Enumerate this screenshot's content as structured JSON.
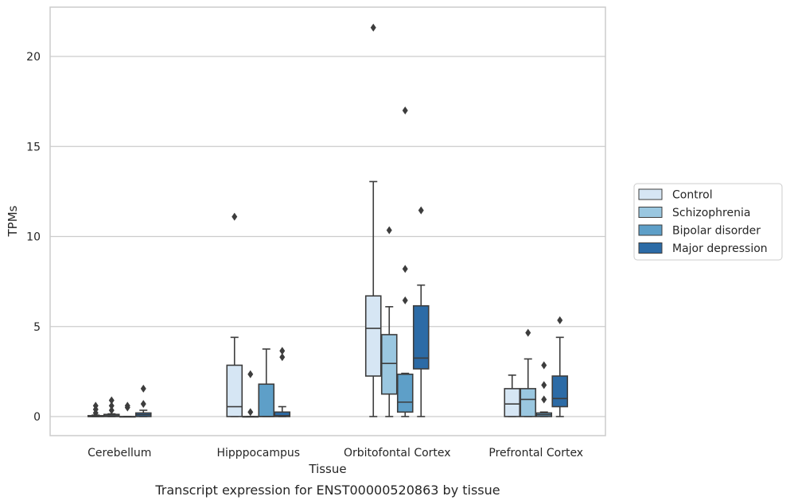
{
  "chart_data": {
    "type": "boxplot",
    "title": "Transcript expression for ENST00000520863 by tissue",
    "xlabel": "Tissue",
    "ylabel": "TPMs",
    "ylim": [
      -1,
      23
    ],
    "yticks": [
      0,
      5,
      10,
      15,
      20
    ],
    "grid": "horizontal",
    "legend_position": "right",
    "categories": [
      "Cerebellum",
      "Hipppocampus",
      "Orbitofontal Cortex",
      "Prefrontal Cortex"
    ],
    "series": [
      {
        "name": "Control",
        "color": "#d6e6f4",
        "boxes": [
          {
            "whislo": 0,
            "q1": 0,
            "med": 0,
            "q3": 0.05,
            "whishi": 0.08,
            "fliers": [
              0.2,
              0.4,
              0.6
            ]
          },
          {
            "whislo": 0,
            "q1": 0,
            "med": 0.55,
            "q3": 2.85,
            "whishi": 4.4,
            "fliers": [
              11.1
            ]
          },
          {
            "whislo": 0,
            "q1": 2.25,
            "med": 4.9,
            "q3": 6.7,
            "whishi": 13.05,
            "fliers": [
              21.6
            ]
          },
          {
            "whislo": 0,
            "q1": 0,
            "med": 0.7,
            "q3": 1.55,
            "whishi": 2.3,
            "fliers": []
          }
        ]
      },
      {
        "name": "Schizophrenia",
        "color": "#9ac7e0",
        "boxes": [
          {
            "whislo": 0,
            "q1": 0,
            "med": 0.05,
            "q3": 0.12,
            "whishi": 0.15,
            "fliers": [
              0.35,
              0.6,
              0.9
            ]
          },
          {
            "whislo": 0,
            "q1": 0,
            "med": 0,
            "q3": 0,
            "whishi": 0,
            "fliers": [
              0.25,
              2.35
            ]
          },
          {
            "whislo": 0,
            "q1": 1.25,
            "med": 2.95,
            "q3": 4.55,
            "whishi": 6.1,
            "fliers": [
              10.35
            ]
          },
          {
            "whislo": 0,
            "q1": 0,
            "med": 0.95,
            "q3": 1.55,
            "whishi": 3.2,
            "fliers": [
              4.65
            ]
          }
        ]
      },
      {
        "name": "Bipolar disorder",
        "color": "#5e9fc8",
        "boxes": [
          {
            "whislo": 0,
            "q1": 0,
            "med": 0,
            "q3": 0,
            "whishi": 0,
            "fliers": [
              0.5,
              0.6
            ]
          },
          {
            "whislo": 0,
            "q1": 0,
            "med": 0,
            "q3": 1.8,
            "whishi": 3.75,
            "fliers": []
          },
          {
            "whislo": 0,
            "q1": 0.25,
            "med": 0.8,
            "q3": 2.35,
            "whishi": 2.4,
            "fliers": [
              6.45,
              8.2,
              17.0
            ]
          },
          {
            "whislo": 0,
            "q1": 0,
            "med": 0.1,
            "q3": 0.2,
            "whishi": 0.25,
            "fliers": [
              0.95,
              1.75,
              2.85
            ]
          }
        ]
      },
      {
        "name": "Major depression",
        "color": "#2c6ba6",
        "boxes": [
          {
            "whislo": 0,
            "q1": 0,
            "med": 0.1,
            "q3": 0.2,
            "whishi": 0.35,
            "fliers": [
              0.7,
              1.55
            ]
          },
          {
            "whislo": 0,
            "q1": 0,
            "med": 0.05,
            "q3": 0.25,
            "whishi": 0.55,
            "fliers": [
              3.3,
              3.65
            ]
          },
          {
            "whislo": 0,
            "q1": 2.65,
            "med": 3.25,
            "q3": 6.15,
            "whishi": 7.3,
            "fliers": [
              11.45
            ]
          },
          {
            "whislo": 0,
            "q1": 0.55,
            "med": 1.0,
            "q3": 2.25,
            "whishi": 4.4,
            "fliers": [
              5.35
            ]
          }
        ]
      }
    ]
  }
}
